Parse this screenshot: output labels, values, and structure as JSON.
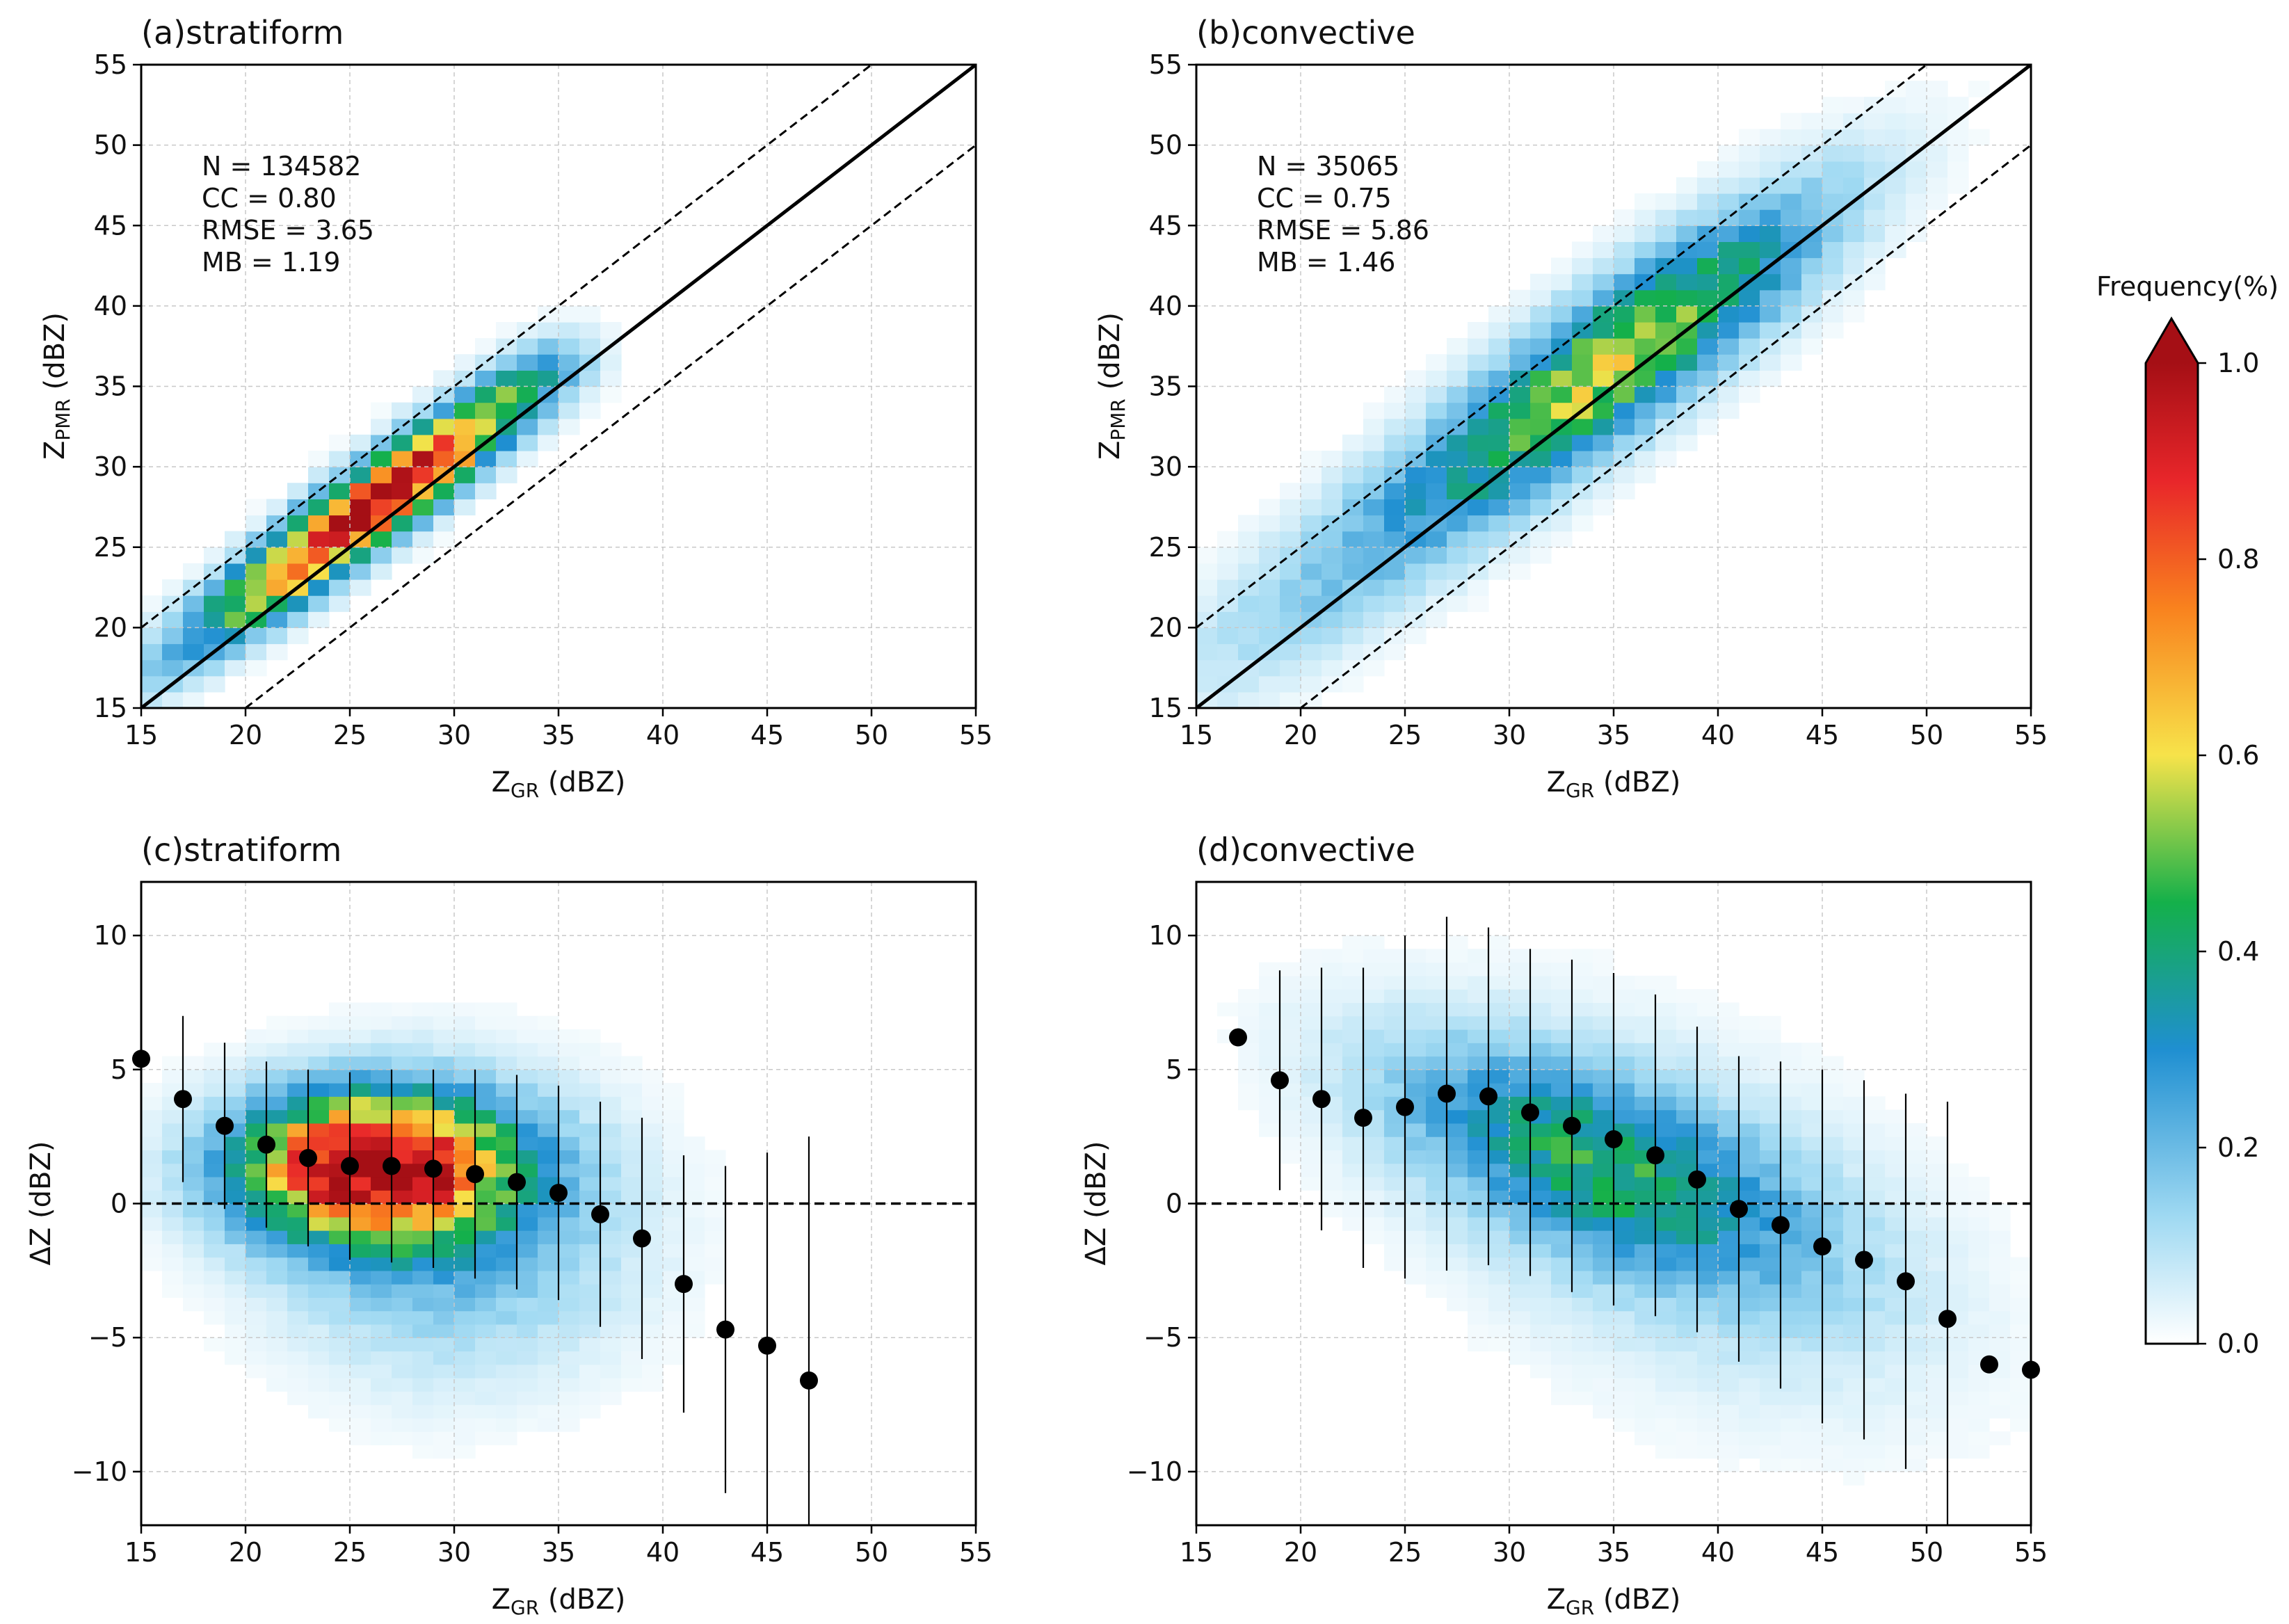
{
  "chart_data": [
    {
      "panel": "a",
      "type": "heatmap",
      "title": "(a)stratiform",
      "xlabel_main": "Z",
      "xlabel_sub": "GR",
      "xlabel_unit": " (dBZ)",
      "ylabel_main": "Z",
      "ylabel_sub": "PMR",
      "ylabel_unit": " (dBZ)",
      "xlim": [
        15,
        55
      ],
      "ylim": [
        15,
        55
      ],
      "xticks": [
        15,
        20,
        25,
        30,
        35,
        40,
        45,
        50,
        55
      ],
      "yticks": [
        15,
        20,
        25,
        30,
        35,
        40,
        45,
        50,
        55
      ],
      "stats": [
        "N = 134582",
        "CC = 0.80",
        "RMSE = 3.65",
        "MB = 1.19"
      ],
      "reference_lines": [
        {
          "style": "solid",
          "from": [
            15,
            15
          ],
          "to": [
            55,
            55
          ]
        },
        {
          "style": "dashed",
          "from": [
            15,
            20
          ],
          "to": [
            50,
            55
          ]
        },
        {
          "style": "dashed",
          "from": [
            20,
            15
          ],
          "to": [
            55,
            50
          ]
        }
      ],
      "grid": true
    },
    {
      "panel": "b",
      "type": "heatmap",
      "title": "(b)convective",
      "xlabel_main": "Z",
      "xlabel_sub": "GR",
      "xlabel_unit": " (dBZ)",
      "ylabel_main": "Z",
      "ylabel_sub": "PMR",
      "ylabel_unit": " (dBZ)",
      "xlim": [
        15,
        55
      ],
      "ylim": [
        15,
        55
      ],
      "xticks": [
        15,
        20,
        25,
        30,
        35,
        40,
        45,
        50,
        55
      ],
      "yticks": [
        15,
        20,
        25,
        30,
        35,
        40,
        45,
        50,
        55
      ],
      "stats": [
        "N = 35065",
        "CC = 0.75",
        "RMSE = 5.86",
        "MB = 1.46"
      ],
      "reference_lines": [
        {
          "style": "solid",
          "from": [
            15,
            15
          ],
          "to": [
            55,
            55
          ]
        },
        {
          "style": "dashed",
          "from": [
            15,
            20
          ],
          "to": [
            50,
            55
          ]
        },
        {
          "style": "dashed",
          "from": [
            20,
            15
          ],
          "to": [
            55,
            50
          ]
        }
      ],
      "grid": true
    },
    {
      "panel": "c",
      "type": "heatmap",
      "title": "(c)stratiform",
      "xlabel_main": "Z",
      "xlabel_sub": "GR",
      "xlabel_unit": " (dBZ)",
      "ylabel_main": "ΔZ",
      "ylabel_sub": "",
      "ylabel_unit": " (dBZ)",
      "xlim": [
        15,
        55
      ],
      "ylim": [
        -12,
        12
      ],
      "xticks": [
        15,
        20,
        25,
        30,
        35,
        40,
        45,
        50,
        55
      ],
      "yticks": [
        -10,
        -5,
        0,
        5,
        10
      ],
      "zero_line": true,
      "grid": true,
      "points": {
        "x": [
          15,
          17,
          19,
          21,
          23,
          25,
          27,
          29,
          31,
          33,
          35,
          37,
          39,
          41,
          43,
          45,
          47
        ],
        "y": [
          5.4,
          3.9,
          2.9,
          2.2,
          1.7,
          1.4,
          1.4,
          1.3,
          1.1,
          0.8,
          0.4,
          -0.4,
          -1.3,
          -3.0,
          -4.7,
          -5.3,
          -6.6
        ],
        "err": [
          0,
          3.1,
          3.1,
          3.1,
          3.3,
          3.5,
          3.6,
          3.7,
          3.9,
          4.0,
          4.0,
          4.2,
          4.5,
          4.8,
          6.1,
          7.2,
          9.1
        ]
      }
    },
    {
      "panel": "d",
      "type": "heatmap",
      "title": "(d)convective",
      "xlabel_main": "Z",
      "xlabel_sub": "GR",
      "xlabel_unit": " (dBZ)",
      "ylabel_main": "ΔZ",
      "ylabel_sub": "",
      "ylabel_unit": " (dBZ)",
      "xlim": [
        15,
        55
      ],
      "ylim": [
        -12,
        12
      ],
      "xticks": [
        15,
        20,
        25,
        30,
        35,
        40,
        45,
        50,
        55
      ],
      "yticks": [
        -10,
        -5,
        0,
        5,
        10
      ],
      "zero_line": true,
      "grid": true,
      "points": {
        "x": [
          17,
          19,
          21,
          23,
          25,
          27,
          29,
          31,
          33,
          35,
          37,
          39,
          41,
          43,
          45,
          47,
          49,
          51,
          53,
          55
        ],
        "y": [
          6.2,
          4.6,
          3.9,
          3.2,
          3.6,
          4.1,
          4.0,
          3.4,
          2.9,
          2.4,
          1.8,
          0.9,
          -0.2,
          -0.8,
          -1.6,
          -2.1,
          -2.9,
          -4.3,
          -6.0,
          -6.2
        ],
        "err": [
          0,
          4.1,
          4.9,
          5.6,
          6.4,
          6.6,
          6.3,
          6.1,
          6.2,
          6.2,
          6.0,
          5.7,
          5.7,
          6.1,
          6.6,
          6.7,
          7.0,
          8.1,
          0,
          0
        ]
      }
    }
  ],
  "colorbar": {
    "title": "Frequency(%)",
    "range": [
      0.0,
      1.0
    ],
    "ticks": [
      "0.0",
      "0.2",
      "0.4",
      "0.6",
      "0.8",
      "1.0"
    ],
    "tick_values": [
      0.0,
      0.2,
      0.4,
      0.6,
      0.8,
      1.0
    ],
    "colors": [
      "#ffffff",
      "#9fd9f2",
      "#1f8fd1",
      "#14b04a",
      "#f7e34a",
      "#f9821e",
      "#e8262a",
      "#a50f15"
    ]
  }
}
